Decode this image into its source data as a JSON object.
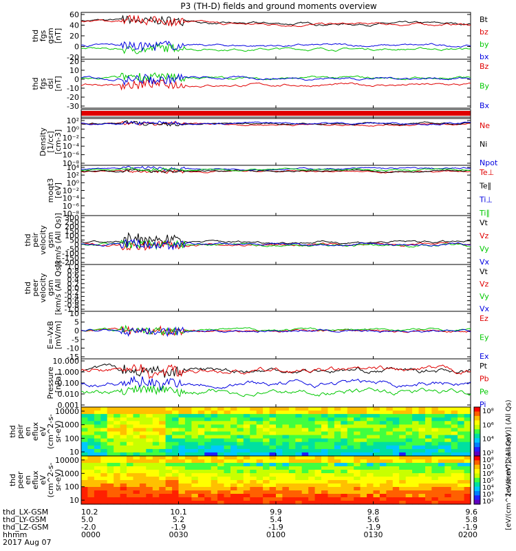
{
  "figure": {
    "title": "P3 (TH-D) fields and ground moments overview"
  },
  "colors": {
    "black": "#000000",
    "red": "#e00000",
    "green": "#00c800",
    "blue": "#0000e0"
  },
  "x_axis": {
    "rows": [
      {
        "label": "thd_LX-GSM",
        "values": [
          "10.2",
          "10.1",
          "9.9",
          "9.8",
          "9.6"
        ]
      },
      {
        "label": "thd_LY-GSM",
        "values": [
          "5.0",
          "5.2",
          "5.4",
          "5.6",
          "5.8"
        ]
      },
      {
        "label": "thd_LZ-GSM",
        "values": [
          "-2.0",
          "-1.9",
          "-1.9",
          "-1.9",
          "-1.9"
        ]
      },
      {
        "label": "hhmm",
        "values": [
          "0000",
          "0030",
          "0100",
          "0130",
          "0200"
        ]
      }
    ],
    "date": "2017 Aug 07"
  },
  "chart_data": [
    {
      "type": "line",
      "ylabel": [
        "thd",
        "fgs",
        "gsm",
        "[nT]"
      ],
      "yticks": [
        "60",
        "40",
        "20",
        "0",
        "-20"
      ],
      "ylim": [
        -20,
        62
      ],
      "series": [
        {
          "name": "Bt",
          "color": "black",
          "base": 48
        },
        {
          "name": "bz",
          "color": "red",
          "base": 47
        },
        {
          "name": "by",
          "color": "green",
          "base": -2
        },
        {
          "name": "bx",
          "color": "blue",
          "base": 4
        }
      ]
    },
    {
      "type": "line",
      "ylabel": [
        "thd",
        "fgs",
        "dsl",
        "[nT]"
      ],
      "yticks": [
        "20",
        "10",
        "0",
        "-10",
        "-20",
        "-30"
      ],
      "ylim": [
        -35,
        22
      ],
      "series": [
        {
          "name": "Bz",
          "color": "red",
          "base": -8
        },
        {
          "name": "By",
          "color": "green",
          "base": 0
        },
        {
          "name": "Bx",
          "color": "blue",
          "base": 0
        }
      ]
    },
    {
      "type": "bar",
      "ylabel": [],
      "yticks": [],
      "series": []
    },
    {
      "type": "line",
      "scale": "log",
      "ylabel": [
        "Density",
        "[1/cc]",
        "[cm-3]"
      ],
      "yticks": [
        "10²",
        "10⁰",
        "10⁻²",
        "10⁻⁴",
        "10⁻⁶",
        "10⁻⁸"
      ],
      "ylim": [
        -9,
        2
      ],
      "series": [
        {
          "name": "Ne",
          "color": "red",
          "base": 0.6
        },
        {
          "name": "Ni",
          "color": "black",
          "base": 0.8
        },
        {
          "name": "Npot",
          "color": "blue",
          "base": 0.9
        }
      ]
    },
    {
      "type": "line",
      "scale": "log",
      "ylabel": [
        "moqt3",
        "[eV]"
      ],
      "yticks": [
        "10⁴",
        "10²",
        "10⁰",
        "10⁻²",
        "10⁻⁴",
        "10⁻⁶",
        "10⁻⁸"
      ],
      "ylim": [
        -9,
        4.5
      ],
      "series": [
        {
          "name": "Te⊥",
          "color": "red",
          "base": 2.8
        },
        {
          "name": "Te∥",
          "color": "black",
          "base": 3.0
        },
        {
          "name": "Ti⊥",
          "color": "blue",
          "base": 3.6
        },
        {
          "name": "Ti∥",
          "color": "green",
          "base": 3.3
        }
      ]
    },
    {
      "type": "line",
      "ylabel": [
        "thd",
        "peir",
        "velocity",
        "gsm",
        "[km/s (All Qs)]"
      ],
      "yticks": [
        "300",
        "250",
        "200",
        "150",
        "100",
        "50",
        "0",
        "-50",
        "-100",
        "-150",
        "-200"
      ],
      "ylim": [
        -200,
        300
      ],
      "series": [
        {
          "name": "Vt",
          "color": "black",
          "base": 30
        },
        {
          "name": "Vz",
          "color": "red",
          "base": 0
        },
        {
          "name": "Vy",
          "color": "green",
          "base": 0
        },
        {
          "name": "Vx",
          "color": "blue",
          "base": 5
        }
      ]
    },
    {
      "type": "line",
      "ylabel": [
        "thd",
        "peer",
        "velocity",
        "gsm",
        "[km/s (All Qs)]"
      ],
      "yticks": [
        "1.0",
        "0.8",
        "0.6",
        "0.4",
        "0.2",
        "0.0",
        "-0.2",
        "-0.4",
        "-0.6",
        "-0.8",
        "-1.0"
      ],
      "ylim": [
        -1,
        1
      ],
      "series": [
        {
          "name": "Vt",
          "color": "black"
        },
        {
          "name": "Vz",
          "color": "red"
        },
        {
          "name": "Vy",
          "color": "green"
        },
        {
          "name": "Vx",
          "color": "blue"
        }
      ]
    },
    {
      "type": "line",
      "ylabel": [
        "E=-VxB",
        "[mV/m]"
      ],
      "yticks": [
        "10",
        "5",
        "0",
        "-5",
        "-10",
        "-15"
      ],
      "ylim": [
        -16,
        11
      ],
      "series": [
        {
          "name": "Ez",
          "color": "red",
          "base": 0
        },
        {
          "name": "Ey",
          "color": "green",
          "base": 0.5
        },
        {
          "name": "Ex",
          "color": "blue",
          "base": 0
        }
      ]
    },
    {
      "type": "line",
      "scale": "log",
      "ylabel": [
        "Pressure",
        "[nPa]"
      ],
      "yticks": [
        "10.000",
        "1.000",
        "0.100",
        "0.010",
        "0.001"
      ],
      "ylim": [
        -3,
        1
      ],
      "series": [
        {
          "name": "Pt",
          "color": "black",
          "base": 0.05
        },
        {
          "name": "Pb",
          "color": "red",
          "base": 0.0
        },
        {
          "name": "Pe",
          "color": "green",
          "base": -1.75
        },
        {
          "name": "Pi",
          "color": "blue",
          "base": -1.0
        }
      ]
    },
    {
      "type": "heatmap",
      "ylabel": [
        "thd",
        "peir",
        "en",
        "eflux",
        "eV",
        "(cm^2-s-",
        "sr-eV)"
      ],
      "yticks": [
        "10000",
        "1000",
        "100",
        "10"
      ],
      "ylim": [
        5,
        20000
      ]
    },
    {
      "type": "heatmap",
      "ylabel": [
        "thd",
        "peer",
        "en",
        "eflux",
        "eV",
        "(cm^2-s-",
        "sr-eV)"
      ],
      "yticks": [
        "10000",
        "1000",
        "100",
        "10"
      ],
      "ylim": [
        5,
        20000
      ]
    }
  ],
  "colorbars": [
    {
      "ticks": [
        "10⁸",
        "10⁶",
        "10⁴",
        "10²"
      ],
      "label": "[eV/(cm^2-s-sr-eV)] (All Qs)"
    },
    {
      "ticks": [
        "10⁸",
        "10⁷",
        "10⁶",
        "10⁵",
        "10⁴",
        "10³",
        "10²"
      ],
      "label": "[eV/(cm^2-s-sr-eV)] (All Qs)"
    }
  ]
}
